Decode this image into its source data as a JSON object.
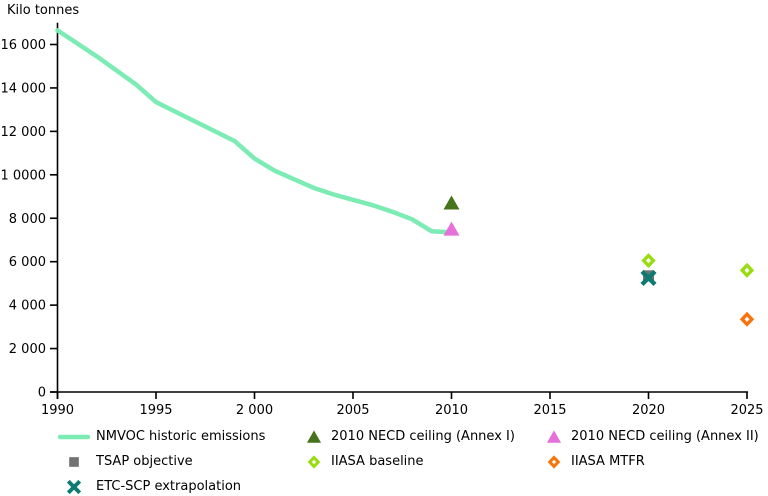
{
  "chart_data": {
    "type": "line",
    "title": "",
    "y_axis_title": "Kilo tonnes",
    "xlabel": "",
    "ylabel": "Kilo tonnes",
    "x_range": [
      1990,
      2025
    ],
    "ylim": [
      0,
      17000
    ],
    "grid": false,
    "legend_position": "bottom",
    "x_ticks": [
      {
        "year": 1990,
        "label": "1990"
      },
      {
        "year": 1995,
        "label": "1995"
      },
      {
        "year": 2000,
        "label": "2 000"
      },
      {
        "year": 2005,
        "label": "2005"
      },
      {
        "year": 2010,
        "label": "2010"
      },
      {
        "year": 2015,
        "label": "2015"
      },
      {
        "year": 2020,
        "label": "2020"
      },
      {
        "year": 2025,
        "label": "2025"
      }
    ],
    "y_ticks": [
      {
        "value": 0,
        "label": "0"
      },
      {
        "value": 2000,
        "label": "2 000"
      },
      {
        "value": 4000,
        "label": "4 000"
      },
      {
        "value": 6000,
        "label": "6 000"
      },
      {
        "value": 8000,
        "label": "8 000"
      },
      {
        "value": 10000,
        "label": "1 0000"
      },
      {
        "value": 12000,
        "label": "12 000"
      },
      {
        "value": 14000,
        "label": "14 000"
      },
      {
        "value": 16000,
        "label": "16 000"
      }
    ],
    "series": [
      {
        "name": "NMVOC historic emissions",
        "type": "line",
        "color": "#7DEBB4",
        "x": [
          1990,
          1991,
          1992,
          1993,
          1994,
          1995,
          1996,
          1997,
          1998,
          1999,
          2000,
          2001,
          2002,
          2003,
          2004,
          2005,
          2006,
          2007,
          2008,
          2009,
          2010
        ],
        "values": [
          16650,
          16050,
          15450,
          14800,
          14150,
          13350,
          12900,
          12450,
          12000,
          11550,
          10750,
          10200,
          9800,
          9400,
          9100,
          8850,
          8600,
          8300,
          7950,
          7400,
          7350
        ]
      }
    ],
    "scatter_series": [
      {
        "name": "2010 NECD ceiling (Annex I)",
        "marker": "triangle",
        "color": "#46741D",
        "points": [
          {
            "year": 2010,
            "value": 8700
          }
        ]
      },
      {
        "name": "2010 NECD ceiling (Annex II)",
        "marker": "triangle",
        "color": "#E66FD9",
        "points": [
          {
            "year": 2010,
            "value": 7500
          }
        ]
      },
      {
        "name": "TSAP objective",
        "marker": "square",
        "color": "#737373",
        "points": [
          {
            "year": 2020,
            "value": 5350
          }
        ]
      },
      {
        "name": "IIASA baseline",
        "marker": "diamond",
        "color": "#99DD11",
        "points": [
          {
            "year": 2020,
            "value": 6050
          },
          {
            "year": 2025,
            "value": 5600
          }
        ]
      },
      {
        "name": "IIASA MTFR",
        "marker": "diamond",
        "color": "#FA730A",
        "points": [
          {
            "year": 2025,
            "value": 3350
          }
        ]
      },
      {
        "name": "ETC-SCP extrapolation",
        "marker": "x",
        "color": "#0E7A72",
        "points": [
          {
            "year": 2020,
            "value": 5250
          }
        ]
      }
    ]
  },
  "legend": {
    "columns": [
      {
        "items": [
          {
            "label": "NMVOC historic emissions",
            "marker": "line",
            "color": "#7DEBB4"
          },
          {
            "label": "TSAP objective",
            "marker": "square",
            "color": "#737373"
          },
          {
            "label": "ETC-SCP extrapolation",
            "marker": "x",
            "color": "#0E7A72"
          }
        ]
      },
      {
        "items": [
          {
            "label": "2010 NECD ceiling (Annex I)",
            "marker": "triangle",
            "color": "#46741D"
          },
          {
            "label": "IIASA baseline",
            "marker": "diamond",
            "color": "#99DD11"
          }
        ]
      },
      {
        "items": [
          {
            "label": "2010 NECD ceiling (Annex II)",
            "marker": "triangle",
            "color": "#E66FD9"
          },
          {
            "label": "IIASA MTFR",
            "marker": "diamond",
            "color": "#FA730A"
          }
        ]
      }
    ]
  },
  "colors": {
    "axis": "#000000",
    "text": "#000000",
    "background": "#ffffff",
    "historic_line": "#7DEBB4",
    "necd_annex1": "#46741D",
    "necd_annex2": "#E66FD9",
    "tsap": "#737373",
    "iiasa_baseline": "#99DD11",
    "iiasa_mtfr": "#FA730A",
    "etc_scp": "#0E7A72"
  }
}
